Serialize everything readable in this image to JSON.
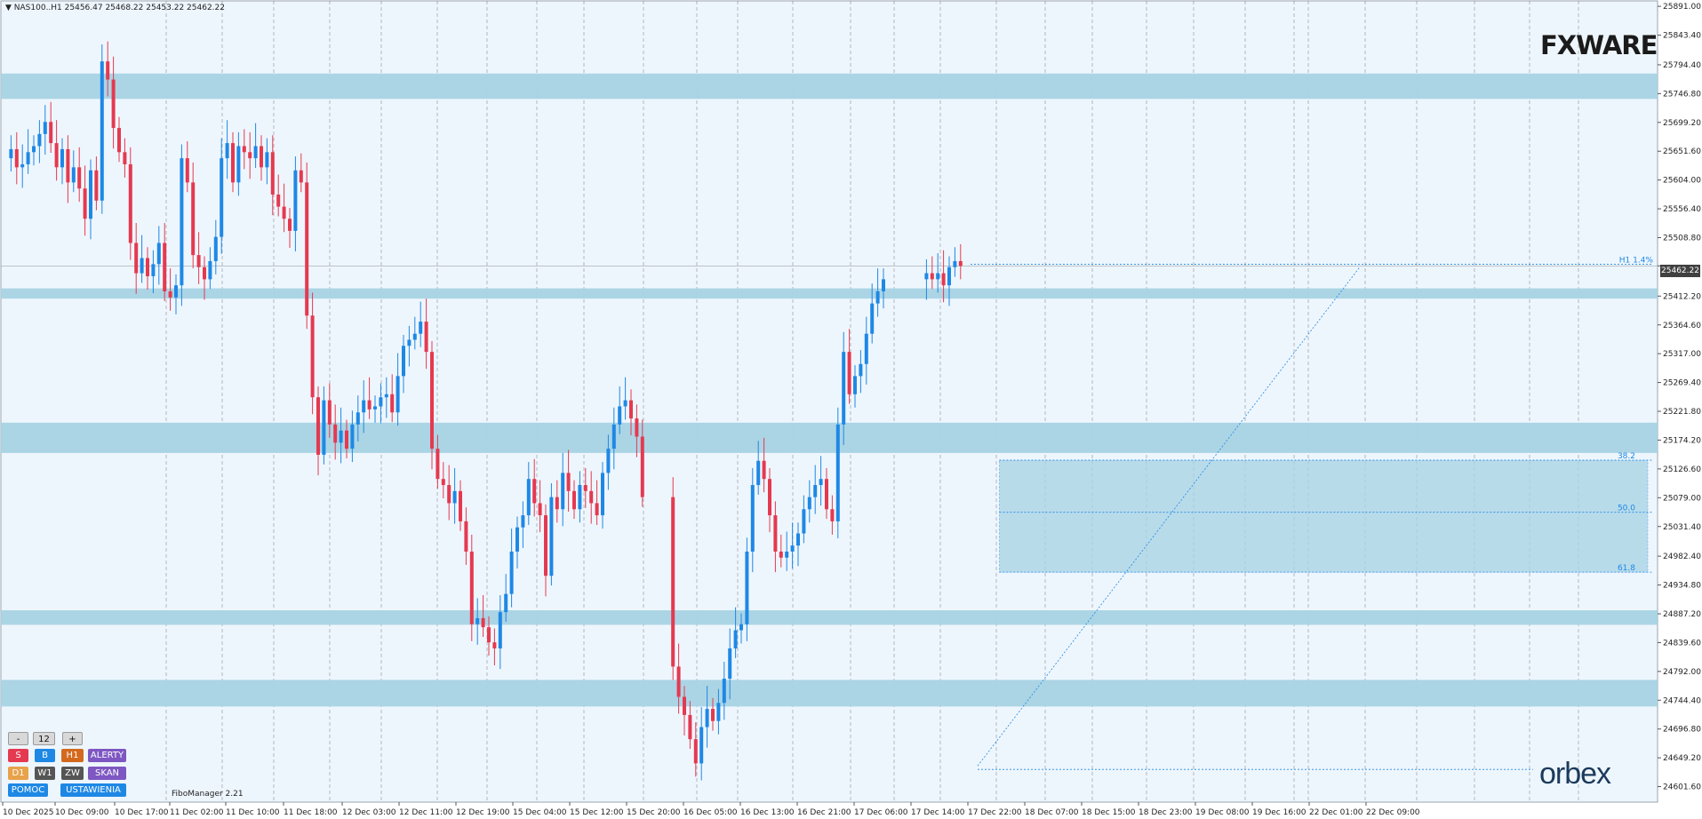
{
  "header": {
    "symbol_info": "▼ NAS100..H1  25456.47 25468.22 25453.22 25462.22"
  },
  "branding": {
    "fxware_logo": "FXWARE",
    "orbex_logo": "orbex"
  },
  "indicator": {
    "name": "FiboManager 2.21",
    "current_price_label": "25462.22",
    "move_label": "H1 1.4%",
    "fib_levels": [
      {
        "label": "38.2",
        "price": 25141
      },
      {
        "label": "50.0",
        "price": 25055
      },
      {
        "label": "61.8",
        "price": 24956
      }
    ],
    "fib_box": {
      "from_candle": 171,
      "to_candle": 285,
      "top": 25141,
      "bottom": 24956
    },
    "swing_low": {
      "candle": 171,
      "price": 24630
    },
    "swing_high": {
      "candle": 241,
      "price": 25472
    }
  },
  "controls": {
    "minus": "-",
    "value": "12",
    "plus": "+",
    "s": "S",
    "b": "B",
    "h1": "H1",
    "alerty": "ALERTY",
    "d1": "D1",
    "w1": "W1",
    "zw": "ZW",
    "skan": "SKAN",
    "pomoc": "POMOC",
    "ustawienia": "USTAWIENIA"
  },
  "colors": {
    "background": "#eef6fd",
    "bull": "#1e88e5",
    "bear": "#e53950",
    "zone": "#a7d3e4",
    "grid": "#555555"
  },
  "chart_data": {
    "type": "candlestick",
    "title": "NAS100..H1",
    "ylim": [
      24576,
      25900
    ],
    "y_ticks": [
      "25891.00",
      "25843.40",
      "25794.40",
      "25746.80",
      "25699.20",
      "25651.60",
      "25604.00",
      "25556.40",
      "25508.80",
      "25462.22",
      "25412.20",
      "25364.60",
      "25317.00",
      "25269.40",
      "25221.80",
      "25174.20",
      "25126.60",
      "25079.00",
      "25031.40",
      "24982.40",
      "24934.80",
      "24887.20",
      "24839.60",
      "24792.00",
      "24744.40",
      "24696.80",
      "24649.20",
      "24601.60"
    ],
    "x_labels": [
      "10 Dec 2025",
      "10 Dec 09:00",
      "10 Dec 17:00",
      "11 Dec 02:00",
      "11 Dec 10:00",
      "11 Dec 18:00",
      "12 Dec 03:00",
      "12 Dec 11:00",
      "12 Dec 19:00",
      "15 Dec 04:00",
      "15 Dec 12:00",
      "15 Dec 20:00",
      "16 Dec 05:00",
      "16 Dec 13:00",
      "16 Dec 21:00",
      "17 Dec 06:00",
      "17 Dec 14:00",
      "17 Dec 22:00",
      "18 Dec 07:00",
      "18 Dec 15:00",
      "18 Dec 23:00",
      "19 Dec 08:00",
      "19 Dec 16:00",
      "22 Dec 01:00",
      "22 Dec 09:00"
    ],
    "support_resistance_zones": [
      {
        "top": 25780,
        "bottom": 25738
      },
      {
        "top": 25425,
        "bottom": 25408
      },
      {
        "top": 25203,
        "bottom": 25153
      },
      {
        "top": 24893,
        "bottom": 24869
      },
      {
        "top": 24778,
        "bottom": 24734
      }
    ],
    "path": [
      [
        0,
        25640
      ],
      [
        1,
        25655
      ],
      [
        2,
        25625
      ],
      [
        3,
        25630
      ],
      [
        4,
        25650
      ],
      [
        5,
        25660
      ],
      [
        6,
        25680
      ],
      [
        7,
        25700
      ],
      [
        8,
        25665
      ],
      [
        9,
        25625
      ],
      [
        10,
        25655
      ],
      [
        11,
        25600
      ],
      [
        12,
        25625
      ],
      [
        13,
        25590
      ],
      [
        14,
        25540
      ],
      [
        15,
        25620
      ],
      [
        16,
        25570
      ],
      [
        17,
        25800
      ],
      [
        18,
        25770
      ],
      [
        19,
        25690
      ],
      [
        20,
        25650
      ],
      [
        21,
        25630
      ],
      [
        22,
        25500
      ],
      [
        23,
        25450
      ],
      [
        24,
        25475
      ],
      [
        25,
        25445
      ],
      [
        26,
        25465
      ],
      [
        27,
        25500
      ],
      [
        28,
        25420
      ],
      [
        29,
        25410
      ],
      [
        30,
        25430
      ],
      [
        31,
        25640
      ],
      [
        32,
        25600
      ],
      [
        33,
        25480
      ],
      [
        34,
        25460
      ],
      [
        35,
        25440
      ],
      [
        36,
        25470
      ],
      [
        37,
        25510
      ],
      [
        38,
        25640
      ],
      [
        39,
        25665
      ],
      [
        40,
        25600
      ],
      [
        41,
        25660
      ],
      [
        42,
        25650
      ],
      [
        43,
        25640
      ],
      [
        44,
        25660
      ],
      [
        45,
        25625
      ],
      [
        46,
        25650
      ],
      [
        47,
        25580
      ],
      [
        48,
        25560
      ],
      [
        49,
        25540
      ],
      [
        50,
        25520
      ],
      [
        51,
        25620
      ],
      [
        52,
        25600
      ],
      [
        53,
        25380
      ],
      [
        54,
        25245
      ],
      [
        55,
        25150
      ],
      [
        56,
        25240
      ],
      [
        57,
        25200
      ],
      [
        58,
        25170
      ],
      [
        59,
        25190
      ],
      [
        60,
        25160
      ],
      [
        61,
        25200
      ],
      [
        62,
        25220
      ],
      [
        63,
        25240
      ],
      [
        64,
        25225
      ],
      [
        65,
        25230
      ],
      [
        66,
        25245
      ],
      [
        67,
        25250
      ],
      [
        68,
        25220
      ],
      [
        69,
        25280
      ],
      [
        70,
        25330
      ],
      [
        71,
        25340
      ],
      [
        72,
        25350
      ],
      [
        73,
        25370
      ],
      [
        74,
        25320
      ],
      [
        75,
        25160
      ],
      [
        76,
        25110
      ],
      [
        77,
        25100
      ],
      [
        78,
        25070
      ],
      [
        79,
        25090
      ],
      [
        80,
        25040
      ],
      [
        81,
        24990
      ],
      [
        82,
        24870
      ],
      [
        83,
        24880
      ],
      [
        84,
        24865
      ],
      [
        85,
        24840
      ],
      [
        86,
        24830
      ],
      [
        87,
        24890
      ],
      [
        88,
        24920
      ],
      [
        89,
        24990
      ],
      [
        90,
        25030
      ],
      [
        91,
        25050
      ],
      [
        92,
        25110
      ],
      [
        93,
        25070
      ],
      [
        94,
        25050
      ],
      [
        95,
        24950
      ],
      [
        96,
        25080
      ],
      [
        97,
        25060
      ],
      [
        98,
        25120
      ],
      [
        99,
        25090
      ],
      [
        100,
        25060
      ],
      [
        101,
        25100
      ],
      [
        102,
        25090
      ],
      [
        103,
        25070
      ],
      [
        104,
        25050
      ],
      [
        105,
        25120
      ],
      [
        106,
        25160
      ],
      [
        107,
        25200
      ],
      [
        108,
        25230
      ],
      [
        109,
        25240
      ],
      [
        110,
        25210
      ],
      [
        111,
        25180
      ],
      [
        112,
        25080
      ],
      [
        113,
        24800
      ],
      [
        114,
        24750
      ],
      [
        115,
        24720
      ],
      [
        116,
        24680
      ],
      [
        117,
        24640
      ],
      [
        118,
        24700
      ],
      [
        119,
        24730
      ],
      [
        120,
        24710
      ],
      [
        121,
        24740
      ],
      [
        122,
        24780
      ],
      [
        123,
        24830
      ],
      [
        124,
        24860
      ],
      [
        125,
        24870
      ],
      [
        126,
        24990
      ],
      [
        127,
        25100
      ],
      [
        128,
        25140
      ],
      [
        129,
        25110
      ],
      [
        130,
        25050
      ],
      [
        131,
        24990
      ],
      [
        132,
        24980
      ],
      [
        133,
        24990
      ],
      [
        134,
        25000
      ],
      [
        135,
        25020
      ],
      [
        136,
        25060
      ],
      [
        137,
        25080
      ],
      [
        138,
        25100
      ],
      [
        139,
        25110
      ],
      [
        140,
        25060
      ],
      [
        141,
        25040
      ],
      [
        142,
        25200
      ],
      [
        143,
        25320
      ],
      [
        144,
        25250
      ],
      [
        145,
        25280
      ],
      [
        146,
        25300
      ],
      [
        147,
        25350
      ],
      [
        148,
        25400
      ],
      [
        149,
        25420
      ],
      [
        150,
        25440
      ],
      [
        151,
        25450
      ],
      [
        152,
        25440
      ],
      [
        153,
        25450
      ],
      [
        154,
        25430
      ],
      [
        155,
        25460
      ],
      [
        156,
        25470
      ],
      [
        157,
        25462
      ]
    ]
  }
}
